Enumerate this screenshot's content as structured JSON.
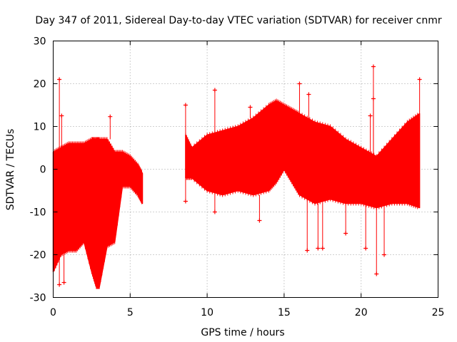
{
  "chart_data": {
    "type": "scatter",
    "title": "Day 347 of 2011, Sidereal Day-to-day VTEC variation (SDTVAR) for receiver cnmr",
    "xlabel": "GPS time / hours",
    "ylabel": "SDTVAR / TECUs",
    "xlim": [
      0,
      25
    ],
    "ylim": [
      -30,
      30
    ],
    "grid": true,
    "x_ticks": [
      0,
      5,
      10,
      15,
      20,
      25
    ],
    "y_ticks": [
      -30,
      -20,
      -10,
      0,
      10,
      20,
      30
    ],
    "x_tick_labels": [
      "0",
      "5",
      "10",
      "15",
      "20",
      "25"
    ],
    "y_tick_labels": [
      "-30",
      "-20",
      "-10",
      "0",
      "10",
      "20",
      "30"
    ],
    "marker": "+",
    "color": "#ff0000",
    "series": [
      {
        "name": "SDTVAR",
        "envelope": [
          {
            "x": 0.0,
            "ymin": -24,
            "ymax": 4
          },
          {
            "x": 0.5,
            "ymin": -20,
            "ymax": 5
          },
          {
            "x": 1.0,
            "ymin": -19,
            "ymax": 6
          },
          {
            "x": 1.5,
            "ymin": -19,
            "ymax": 6
          },
          {
            "x": 2.0,
            "ymin": -17,
            "ymax": 6
          },
          {
            "x": 2.5,
            "ymin": -24,
            "ymax": 7
          },
          {
            "x": 2.8,
            "ymin": -27.5,
            "ymax": 7
          },
          {
            "x": 3.0,
            "ymin": -27.5,
            "ymax": 7
          },
          {
            "x": 3.5,
            "ymin": -18,
            "ymax": 7
          },
          {
            "x": 4.0,
            "ymin": -17,
            "ymax": 4
          },
          {
            "x": 4.5,
            "ymin": -4,
            "ymax": 4
          },
          {
            "x": 5.0,
            "ymin": -4,
            "ymax": 3
          },
          {
            "x": 5.5,
            "ymin": -6,
            "ymax": 1
          },
          {
            "x": 5.8,
            "ymin": -8,
            "ymax": -1
          },
          {
            "x": 8.6,
            "ymin": -2,
            "ymax": 8
          },
          {
            "x": 9.0,
            "ymin": -2,
            "ymax": 5
          },
          {
            "x": 10.0,
            "ymin": -5,
            "ymax": 8
          },
          {
            "x": 11.0,
            "ymin": -6,
            "ymax": 9
          },
          {
            "x": 12.0,
            "ymin": -5,
            "ymax": 10
          },
          {
            "x": 13.0,
            "ymin": -6,
            "ymax": 12
          },
          {
            "x": 14.0,
            "ymin": -5,
            "ymax": 15
          },
          {
            "x": 14.5,
            "ymin": -3,
            "ymax": 16
          },
          {
            "x": 15.0,
            "ymin": 0,
            "ymax": 15
          },
          {
            "x": 15.5,
            "ymin": -3,
            "ymax": 14
          },
          {
            "x": 16.0,
            "ymin": -6,
            "ymax": 13
          },
          {
            "x": 17.0,
            "ymin": -8,
            "ymax": 11
          },
          {
            "x": 18.0,
            "ymin": -7,
            "ymax": 10
          },
          {
            "x": 19.0,
            "ymin": -8,
            "ymax": 7
          },
          {
            "x": 20.0,
            "ymin": -8,
            "ymax": 5
          },
          {
            "x": 21.0,
            "ymin": -9,
            "ymax": 3
          },
          {
            "x": 22.0,
            "ymin": -8,
            "ymax": 7
          },
          {
            "x": 23.0,
            "ymin": -8,
            "ymax": 11
          },
          {
            "x": 23.8,
            "ymin": -9,
            "ymax": 13
          }
        ],
        "outliers": [
          {
            "x": 0.4,
            "y": 21
          },
          {
            "x": 0.4,
            "y": -27
          },
          {
            "x": 0.7,
            "y": -26.5
          },
          {
            "x": 0.55,
            "y": 12.5
          },
          {
            "x": 3.7,
            "y": 12.3
          },
          {
            "x": 8.6,
            "y": -7.5
          },
          {
            "x": 8.6,
            "y": 15
          },
          {
            "x": 10.5,
            "y": 18.5
          },
          {
            "x": 10.5,
            "y": -10
          },
          {
            "x": 12.8,
            "y": 14.5
          },
          {
            "x": 13.4,
            "y": -12
          },
          {
            "x": 16.0,
            "y": 20
          },
          {
            "x": 16.5,
            "y": -19
          },
          {
            "x": 16.6,
            "y": 17.5
          },
          {
            "x": 17.2,
            "y": -18.5
          },
          {
            "x": 17.5,
            "y": -18.5
          },
          {
            "x": 19.0,
            "y": -15
          },
          {
            "x": 20.3,
            "y": -18.5
          },
          {
            "x": 20.8,
            "y": 24
          },
          {
            "x": 20.8,
            "y": 16.5
          },
          {
            "x": 20.6,
            "y": 12.5
          },
          {
            "x": 21.0,
            "y": -24.5
          },
          {
            "x": 21.5,
            "y": -20
          },
          {
            "x": 23.8,
            "y": 21
          }
        ]
      }
    ]
  }
}
